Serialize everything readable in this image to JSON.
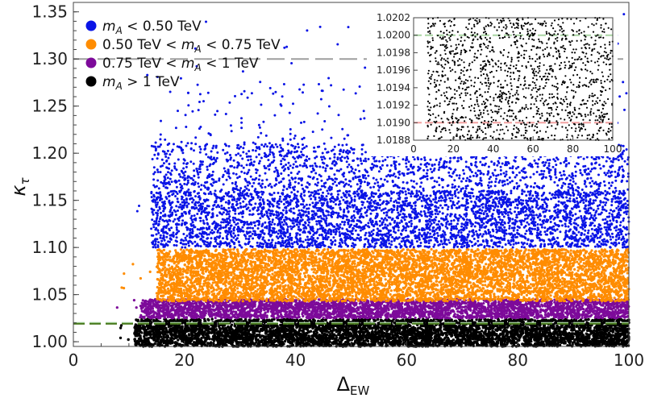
{
  "chart_data": {
    "type": "scatter",
    "xlabel_main": "Δ",
    "xlabel_sub": "EW",
    "ylabel_main": "κ",
    "ylabel_sub": "τ",
    "xlim": [
      0,
      100
    ],
    "ylim": [
      0.995,
      1.36
    ],
    "xticks": [
      0,
      20,
      40,
      60,
      80,
      100
    ],
    "yticks": [
      1.0,
      1.05,
      1.1,
      1.15,
      1.2,
      1.25,
      1.3,
      1.35
    ],
    "reference_lines": [
      {
        "y": 1.3,
        "color": "#9e9e9e",
        "style": "dashed"
      },
      {
        "y": 1.02,
        "color": "#a8d5a2",
        "style": "dashed"
      },
      {
        "y": 1.019,
        "color": "#4a7a1e",
        "style": "dashed"
      }
    ],
    "legend_position": "top-left",
    "series": [
      {
        "name": "m_A < 0.50 TeV",
        "color": "#0a14e6",
        "y_band": [
          1.095,
          1.36
        ],
        "dense_band": [
          1.1,
          1.16
        ],
        "x_start": 11
      },
      {
        "name": "0.50 TeV < m_A < 0.75 TeV",
        "color": "#ff8c00",
        "y_band": [
          1.043,
          1.098
        ],
        "x_start": 8
      },
      {
        "name": "0.75 TeV < m_A < 1 TeV",
        "color": "#7d0a9a",
        "y_band": [
          1.025,
          1.045
        ],
        "x_start": 7
      },
      {
        "name": "m_A > 1 TeV",
        "color": "#000000",
        "y_band": [
          0.995,
          1.024
        ],
        "x_start": 8
      }
    ],
    "legend": [
      {
        "pre": "m",
        "sub": "A",
        "post": " < 0.50 TeV",
        "color": "#0a14e6"
      },
      {
        "pre": "0.50 TeV < m",
        "sub": "A",
        "post": " < 0.75 TeV",
        "color": "#ff8c00"
      },
      {
        "pre": "0.75 TeV < m",
        "sub": "A",
        "post": " < 1 TeV",
        "color": "#7d0a9a"
      },
      {
        "pre": "m",
        "sub": "A",
        "post": " > 1 TeV",
        "color": "#000000"
      }
    ],
    "inset": {
      "type": "scatter",
      "xlim": [
        0,
        100
      ],
      "ylim": [
        1.0188,
        1.0202
      ],
      "xticks": [
        0,
        20,
        40,
        60,
        80,
        100
      ],
      "yticks": [
        1.0188,
        1.019,
        1.0192,
        1.0194,
        1.0196,
        1.0198,
        1.02,
        1.0202
      ],
      "ytick_labels": [
        "1.0188",
        "1.0190",
        "1.0192",
        "1.0194",
        "1.0196",
        "1.0198",
        "1.0200",
        "1.0202"
      ],
      "color": "#000000",
      "x_start": 7,
      "reference_lines": [
        {
          "y": 1.02,
          "color": "#a8d5a2"
        },
        {
          "y": 1.019,
          "color": "#f2a0a0"
        }
      ]
    }
  }
}
